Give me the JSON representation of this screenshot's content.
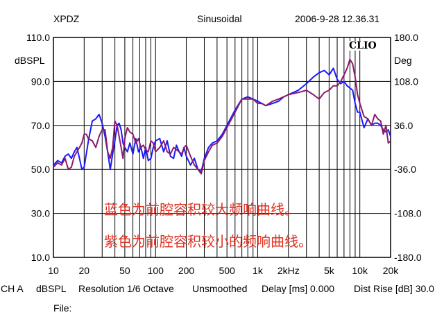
{
  "header": {
    "left": "XPDZ",
    "center": "Sinusoidal",
    "right": "2006-9-28 12.36.31"
  },
  "footer": {
    "channel": "CH A",
    "units": "dBSPL",
    "resolution": "Resolution 1/6 Octave",
    "smoothing": "Unsmoothed",
    "delay": "Delay [ms] 0.000",
    "dist_rise": "Dist Rise [dB] 30.0",
    "file_label": "File:"
  },
  "logo": "CLIO",
  "colors": {
    "blue": "#1a1aff",
    "purple": "#8b1a6b",
    "note": "#e03020",
    "grid": "#000000"
  },
  "chart_data": {
    "type": "line",
    "x_scale": "log",
    "xlim": [
      10,
      20000
    ],
    "ylim": [
      10,
      110
    ],
    "y2lim": [
      -180,
      180
    ],
    "ylabel": "dBSPL",
    "y2label": "Deg",
    "grid": true,
    "x_ticks": [
      {
        "v": 10,
        "label": "10"
      },
      {
        "v": 20,
        "label": "20"
      },
      {
        "v": 50,
        "label": "50"
      },
      {
        "v": 100,
        "label": "100"
      },
      {
        "v": 200,
        "label": "200"
      },
      {
        "v": 500,
        "label": "500"
      },
      {
        "v": 1000,
        "label": "1k"
      },
      {
        "v": 2000,
        "label": "2kHz"
      },
      {
        "v": 5000,
        "label": "5k"
      },
      {
        "v": 10000,
        "label": "10k"
      },
      {
        "v": 20000,
        "label": "20k"
      }
    ],
    "y_ticks": [
      "110.0",
      "90.0",
      "70.0",
      "50.0",
      "30.0",
      "10.0"
    ],
    "y_tick_values": [
      110,
      90,
      70,
      50,
      30,
      10
    ],
    "y2_ticks": [
      "180.0",
      "108.0",
      "36.0",
      "-36.0",
      "-108.0",
      "-180.0"
    ],
    "annotations": [
      "蓝色为前腔容积较大频响曲线。",
      "紫色为前腔容积较小的频响曲线。"
    ],
    "series": [
      {
        "color": "#1a1aff",
        "x": [
          10,
          11,
          12,
          13,
          14,
          15,
          16,
          17,
          18,
          19,
          20,
          21,
          22,
          24,
          26,
          28,
          30,
          32,
          34,
          36,
          38,
          40,
          42,
          44,
          46,
          48,
          50,
          53,
          56,
          60,
          64,
          68,
          72,
          76,
          80,
          85,
          90,
          95,
          100,
          110,
          120,
          130,
          140,
          150,
          160,
          170,
          180,
          190,
          200,
          220,
          240,
          260,
          280,
          300,
          330,
          360,
          400,
          450,
          500,
          600,
          700,
          800,
          900,
          1000,
          1100,
          1200,
          1400,
          1600,
          1800,
          2000,
          2500,
          3000,
          3500,
          4000,
          4500,
          5000,
          5500,
          6000,
          6500,
          7000,
          7500,
          8000,
          8500,
          9000,
          9500,
          10000,
          11000,
          12000,
          13000,
          14000,
          15000,
          16000,
          17000,
          18000,
          19000,
          20000
        ],
        "values": [
          52,
          54,
          53,
          56,
          57,
          55,
          58,
          60,
          55,
          50,
          51,
          57,
          63,
          72,
          73,
          75,
          71,
          65,
          58,
          50,
          57,
          63,
          70,
          71,
          68,
          62,
          60,
          58,
          62,
          57,
          64,
          58,
          60,
          55,
          60,
          54,
          55,
          60,
          63,
          64,
          58,
          63,
          56,
          55,
          61,
          58,
          56,
          60,
          56,
          52,
          55,
          50,
          49,
          55,
          60,
          62,
          63,
          66,
          70,
          77,
          82,
          83,
          82,
          81,
          80,
          79,
          80,
          81,
          83,
          84,
          86,
          89,
          92,
          94,
          95,
          93,
          96,
          91,
          89,
          90,
          88,
          87,
          86,
          80,
          76,
          76,
          69,
          73,
          70,
          71,
          71,
          70,
          68,
          67,
          68,
          65
        ]
      },
      {
        "color": "#8b1a6b",
        "x": [
          10,
          11,
          12,
          13,
          14,
          15,
          16,
          17,
          18,
          19,
          20,
          21,
          22,
          24,
          26,
          28,
          30,
          32,
          34,
          36,
          38,
          40,
          42,
          44,
          46,
          48,
          50,
          53,
          56,
          60,
          64,
          68,
          72,
          76,
          80,
          85,
          90,
          95,
          100,
          110,
          120,
          130,
          140,
          150,
          160,
          170,
          180,
          190,
          200,
          220,
          240,
          260,
          280,
          300,
          330,
          360,
          400,
          450,
          500,
          600,
          700,
          800,
          900,
          1000,
          1100,
          1200,
          1400,
          1600,
          1800,
          2000,
          2500,
          3000,
          3500,
          4000,
          4500,
          5000,
          5500,
          6000,
          6500,
          7000,
          7500,
          8000,
          8500,
          9000,
          9500,
          10000,
          11000,
          12000,
          13000,
          14000,
          15000,
          16000,
          17000,
          18000,
          19000,
          20000
        ],
        "values": [
          51,
          53,
          52,
          55,
          50,
          51,
          56,
          58,
          60,
          62,
          66,
          66,
          64,
          63,
          60,
          65,
          68,
          68,
          58,
          55,
          60,
          72,
          70,
          65,
          60,
          55,
          64,
          69,
          67,
          66,
          62,
          64,
          60,
          61,
          59,
          58,
          63,
          62,
          58,
          60,
          63,
          58,
          57,
          60,
          59,
          58,
          57,
          60,
          61,
          56,
          52,
          50,
          48,
          54,
          58,
          61,
          62,
          65,
          69,
          76,
          82,
          82,
          82,
          80,
          80,
          79,
          81,
          82,
          83,
          84,
          85,
          86,
          84,
          82,
          85,
          86,
          88,
          88,
          90,
          93,
          96,
          100,
          98,
          92,
          84,
          80,
          74,
          73,
          70,
          75,
          73,
          72,
          66,
          70,
          62,
          63
        ]
      }
    ]
  }
}
